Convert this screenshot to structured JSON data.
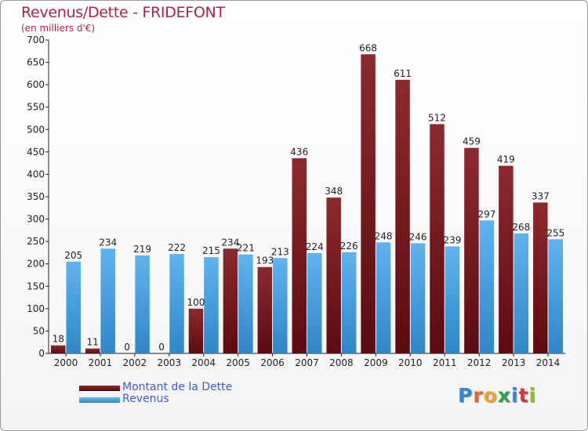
{
  "header": {
    "title": "Revenus/Dette - FRIDEFONT",
    "subtitle": "(en milliers d'€)"
  },
  "colors": {
    "dette": "#7a1a1f",
    "revenus": "#4ea3e0",
    "title": "#b02440",
    "legend_text": "#3f5bd6"
  },
  "legend": [
    {
      "label": "Montant de la Dette",
      "color": "#6e1218"
    },
    {
      "label": "Revenus",
      "color": "#4ea3e0"
    }
  ],
  "logo": {
    "letters": [
      {
        "ch": "P",
        "color": "#3a86d6"
      },
      {
        "ch": "r",
        "color": "#e8642b"
      },
      {
        "ch": "o",
        "color": "#f0a22e"
      },
      {
        "ch": "x",
        "color": "#2f9f4a"
      },
      {
        "ch": "i",
        "color": "#3a86d6"
      },
      {
        "ch": "t",
        "color": "#d6363c"
      },
      {
        "ch": "i",
        "color": "#8bbf3a"
      }
    ]
  },
  "chart_data": {
    "type": "bar",
    "categories": [
      "2000",
      "2001",
      "2002",
      "2003",
      "2004",
      "2005",
      "2006",
      "2007",
      "2008",
      "2009",
      "2010",
      "2011",
      "2012",
      "2013",
      "2014"
    ],
    "series": [
      {
        "name": "Montant de la Dette",
        "values": [
          18,
          11,
          0,
          0,
          100,
          234,
          193,
          436,
          348,
          668,
          611,
          512,
          459,
          419,
          337
        ]
      },
      {
        "name": "Revenus",
        "values": [
          205,
          234,
          219,
          222,
          215,
          221,
          213,
          224,
          226,
          248,
          246,
          239,
          297,
          268,
          255
        ]
      }
    ],
    "ylim": [
      0,
      700
    ],
    "yticks": [
      0,
      50,
      100,
      150,
      200,
      250,
      300,
      350,
      400,
      450,
      500,
      550,
      600,
      650,
      700
    ],
    "grid": false
  }
}
